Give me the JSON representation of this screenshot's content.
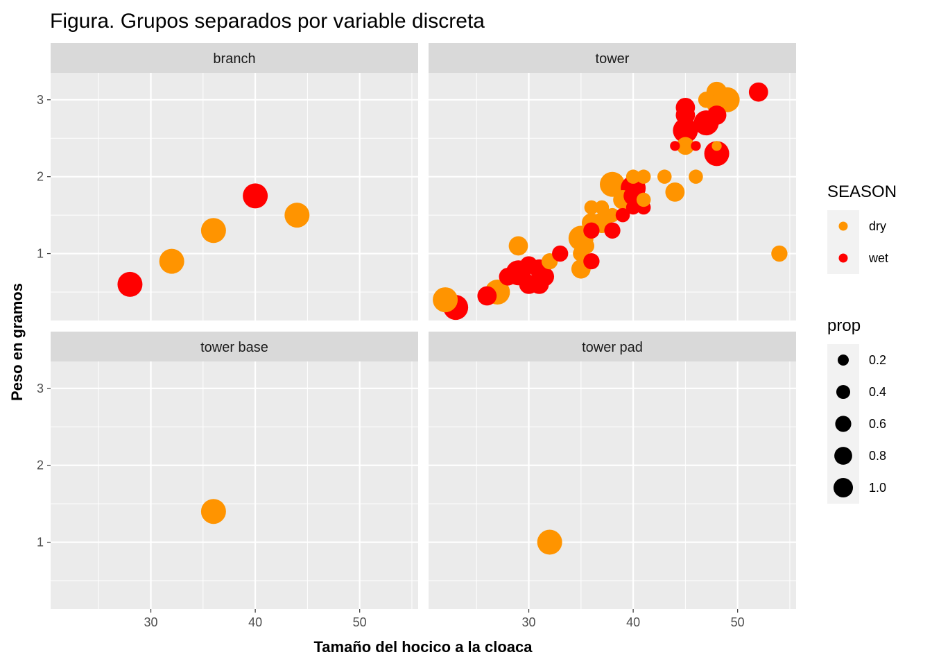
{
  "chart_data": {
    "type": "scatter",
    "title": "Figura. Grupos separados por variable discreta",
    "xlabel": "Tamaño del hocico a la cloaca",
    "ylabel": "Peso en gramos",
    "xlim": [
      20.4,
      55.6
    ],
    "ylim": [
      0.13,
      3.35
    ],
    "x_ticks": [
      30,
      40,
      50
    ],
    "y_ticks": [
      1,
      2,
      3
    ],
    "grid": true,
    "legend_placement": "right",
    "color_legend": {
      "title": "SEASON",
      "entries": [
        {
          "label": "dry",
          "color": "#ff9400"
        },
        {
          "label": "wet",
          "color": "#ff0000"
        }
      ]
    },
    "size_legend": {
      "title": "prop",
      "entries": [
        {
          "label": "0.2",
          "value": 0.2
        },
        {
          "label": "0.4",
          "value": 0.4
        },
        {
          "label": "0.6",
          "value": 0.6
        },
        {
          "label": "0.8",
          "value": 0.8
        },
        {
          "label": "1.0",
          "value": 1.0
        }
      ]
    },
    "panels": [
      {
        "label": "branch",
        "points": [
          {
            "x": 28,
            "y": 0.6,
            "season": "wet",
            "prop": 1.0
          },
          {
            "x": 32,
            "y": 0.9,
            "season": "dry",
            "prop": 1.0
          },
          {
            "x": 36,
            "y": 1.3,
            "season": "dry",
            "prop": 1.0
          },
          {
            "x": 40,
            "y": 1.75,
            "season": "wet",
            "prop": 1.0
          },
          {
            "x": 44,
            "y": 1.5,
            "season": "dry",
            "prop": 1.0
          }
        ]
      },
      {
        "label": "tower",
        "points": [
          {
            "x": 23,
            "y": 0.3,
            "season": "wet",
            "prop": 1.0
          },
          {
            "x": 22,
            "y": 0.4,
            "season": "dry",
            "prop": 1.0
          },
          {
            "x": 26,
            "y": 0.45,
            "season": "wet",
            "prop": 0.5
          },
          {
            "x": 27,
            "y": 0.5,
            "season": "dry",
            "prop": 1.0
          },
          {
            "x": 28,
            "y": 0.7,
            "season": "wet",
            "prop": 0.4
          },
          {
            "x": 29,
            "y": 0.75,
            "season": "wet",
            "prop": 1.0
          },
          {
            "x": 29,
            "y": 1.1,
            "season": "dry",
            "prop": 0.5
          },
          {
            "x": 30,
            "y": 0.6,
            "season": "wet",
            "prop": 0.5
          },
          {
            "x": 30,
            "y": 0.85,
            "season": "wet",
            "prop": 0.4
          },
          {
            "x": 31,
            "y": 0.6,
            "season": "wet",
            "prop": 0.5
          },
          {
            "x": 31,
            "y": 0.8,
            "season": "wet",
            "prop": 0.5
          },
          {
            "x": 31.5,
            "y": 0.7,
            "season": "wet",
            "prop": 0.5
          },
          {
            "x": 32,
            "y": 0.9,
            "season": "dry",
            "prop": 0.3
          },
          {
            "x": 33,
            "y": 1.0,
            "season": "wet",
            "prop": 0.3
          },
          {
            "x": 35,
            "y": 0.8,
            "season": "dry",
            "prop": 0.5
          },
          {
            "x": 35,
            "y": 1.0,
            "season": "dry",
            "prop": 0.3
          },
          {
            "x": 35,
            "y": 1.2,
            "season": "dry",
            "prop": 1.0
          },
          {
            "x": 35.5,
            "y": 1.1,
            "season": "dry",
            "prop": 0.3
          },
          {
            "x": 36,
            "y": 0.9,
            "season": "wet",
            "prop": 0.3
          },
          {
            "x": 36,
            "y": 1.3,
            "season": "wet",
            "prop": 0.3
          },
          {
            "x": 36,
            "y": 1.4,
            "season": "dry",
            "prop": 0.5
          },
          {
            "x": 36,
            "y": 1.6,
            "season": "dry",
            "prop": 0.2
          },
          {
            "x": 37,
            "y": 1.4,
            "season": "dry",
            "prop": 0.6
          },
          {
            "x": 37,
            "y": 1.6,
            "season": "dry",
            "prop": 0.2
          },
          {
            "x": 38,
            "y": 1.3,
            "season": "wet",
            "prop": 0.3
          },
          {
            "x": 38,
            "y": 1.5,
            "season": "dry",
            "prop": 0.2
          },
          {
            "x": 38,
            "y": 1.9,
            "season": "dry",
            "prop": 1.0
          },
          {
            "x": 39,
            "y": 1.5,
            "season": "wet",
            "prop": 0.2
          },
          {
            "x": 39,
            "y": 1.7,
            "season": "dry",
            "prop": 0.5
          },
          {
            "x": 40,
            "y": 1.6,
            "season": "wet",
            "prop": 0.2
          },
          {
            "x": 40,
            "y": 1.75,
            "season": "wet",
            "prop": 0.5
          },
          {
            "x": 40,
            "y": 1.85,
            "season": "wet",
            "prop": 1.0
          },
          {
            "x": 40,
            "y": 2.0,
            "season": "dry",
            "prop": 0.2
          },
          {
            "x": 41,
            "y": 1.6,
            "season": "wet",
            "prop": 0.2
          },
          {
            "x": 41,
            "y": 1.7,
            "season": "dry",
            "prop": 0.2
          },
          {
            "x": 41,
            "y": 2.0,
            "season": "dry",
            "prop": 0.2
          },
          {
            "x": 43,
            "y": 2.0,
            "season": "dry",
            "prop": 0.2
          },
          {
            "x": 44,
            "y": 1.8,
            "season": "dry",
            "prop": 0.5
          },
          {
            "x": 44,
            "y": 2.4,
            "season": "wet",
            "prop": 0.05
          },
          {
            "x": 45,
            "y": 2.4,
            "season": "dry",
            "prop": 0.4
          },
          {
            "x": 45,
            "y": 2.6,
            "season": "wet",
            "prop": 1.0
          },
          {
            "x": 45,
            "y": 2.8,
            "season": "wet",
            "prop": 0.5
          },
          {
            "x": 45,
            "y": 2.9,
            "season": "wet",
            "prop": 0.5
          },
          {
            "x": 46,
            "y": 2.0,
            "season": "dry",
            "prop": 0.2
          },
          {
            "x": 46,
            "y": 2.4,
            "season": "wet",
            "prop": 0.05
          },
          {
            "x": 47,
            "y": 2.7,
            "season": "wet",
            "prop": 1.0
          },
          {
            "x": 47,
            "y": 3.0,
            "season": "dry",
            "prop": 0.3
          },
          {
            "x": 48,
            "y": 2.3,
            "season": "wet",
            "prop": 1.0
          },
          {
            "x": 48,
            "y": 2.4,
            "season": "dry",
            "prop": 0.05
          },
          {
            "x": 48,
            "y": 2.8,
            "season": "wet",
            "prop": 0.5
          },
          {
            "x": 48,
            "y": 2.95,
            "season": "dry",
            "prop": 0.6
          },
          {
            "x": 48,
            "y": 3.1,
            "season": "dry",
            "prop": 0.6
          },
          {
            "x": 49,
            "y": 3.0,
            "season": "dry",
            "prop": 1.0
          },
          {
            "x": 52,
            "y": 3.1,
            "season": "wet",
            "prop": 0.5
          },
          {
            "x": 54,
            "y": 1.0,
            "season": "dry",
            "prop": 0.3
          }
        ]
      },
      {
        "label": "tower base",
        "points": [
          {
            "x": 36,
            "y": 1.4,
            "season": "dry",
            "prop": 1.0
          }
        ]
      },
      {
        "label": "tower pad",
        "points": [
          {
            "x": 32,
            "y": 1.0,
            "season": "dry",
            "prop": 1.0
          }
        ]
      }
    ]
  }
}
